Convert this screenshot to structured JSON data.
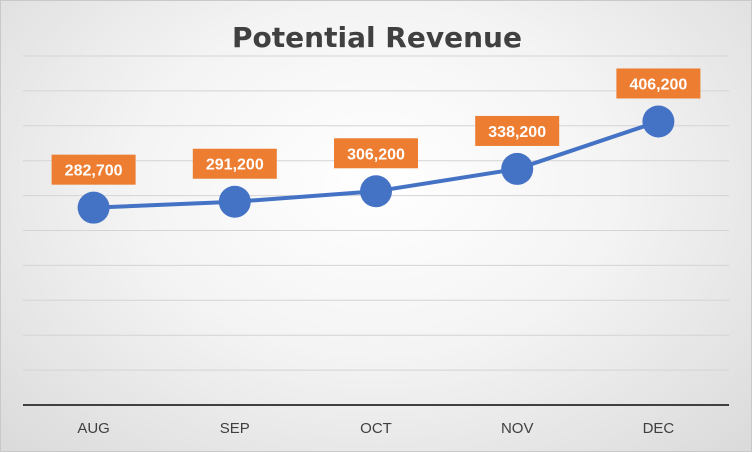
{
  "chart_data": {
    "type": "line",
    "title": "Potential Revenue",
    "categories": [
      "AUG",
      "SEP",
      "OCT",
      "NOV",
      "DEC"
    ],
    "series": [
      {
        "values": [
          282700,
          291200,
          306200,
          338200,
          406200
        ]
      }
    ],
    "data_labels": [
      "282,700",
      "291,200",
      "306,200",
      "338,200",
      "406,200"
    ],
    "xlabel": "",
    "ylabel": "",
    "ylim": [
      0,
      500000
    ],
    "grid": true,
    "legend": "none",
    "colors": {
      "line": "#4472C4",
      "marker": "#4472C4",
      "label_bg": "#ED7D31",
      "gridline": "#d4d4d4",
      "axis": "#404040"
    }
  }
}
